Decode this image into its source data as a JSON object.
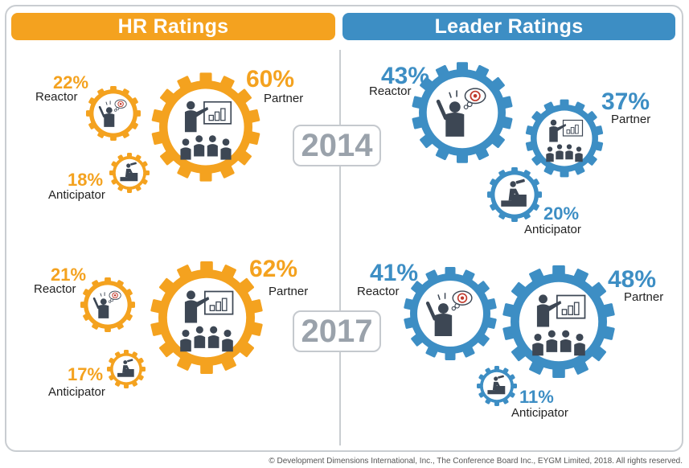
{
  "headers": {
    "hr": "HR Ratings",
    "leader": "Leader Ratings"
  },
  "years": [
    "2014",
    "2017"
  ],
  "hr_2014": {
    "reactor": {
      "pct": "22%",
      "label": "Reactor"
    },
    "partner": {
      "pct": "60%",
      "label": "Partner"
    },
    "anticipator": {
      "pct": "18%",
      "label": "Anticipator"
    }
  },
  "leader_2014": {
    "reactor": {
      "pct": "43%",
      "label": "Reactor"
    },
    "partner": {
      "pct": "37%",
      "label": "Partner"
    },
    "anticipator": {
      "pct": "20%",
      "label": "Anticipator"
    }
  },
  "hr_2017": {
    "reactor": {
      "pct": "21%",
      "label": "Reactor"
    },
    "partner": {
      "pct": "62%",
      "label": "Partner"
    },
    "anticipator": {
      "pct": "17%",
      "label": "Anticipator"
    }
  },
  "leader_2017": {
    "reactor": {
      "pct": "41%",
      "label": "Reactor"
    },
    "partner": {
      "pct": "48%",
      "label": "Partner"
    },
    "anticipator": {
      "pct": "11%",
      "label": "Anticipator"
    }
  },
  "colors": {
    "hr": "#f4a21f",
    "leader": "#3d8ec4",
    "figure": "#3d4754"
  },
  "footer": "© Development Dimensions International, Inc., The Conference Board Inc., EYGM Limited, 2018. All rights reserved."
}
